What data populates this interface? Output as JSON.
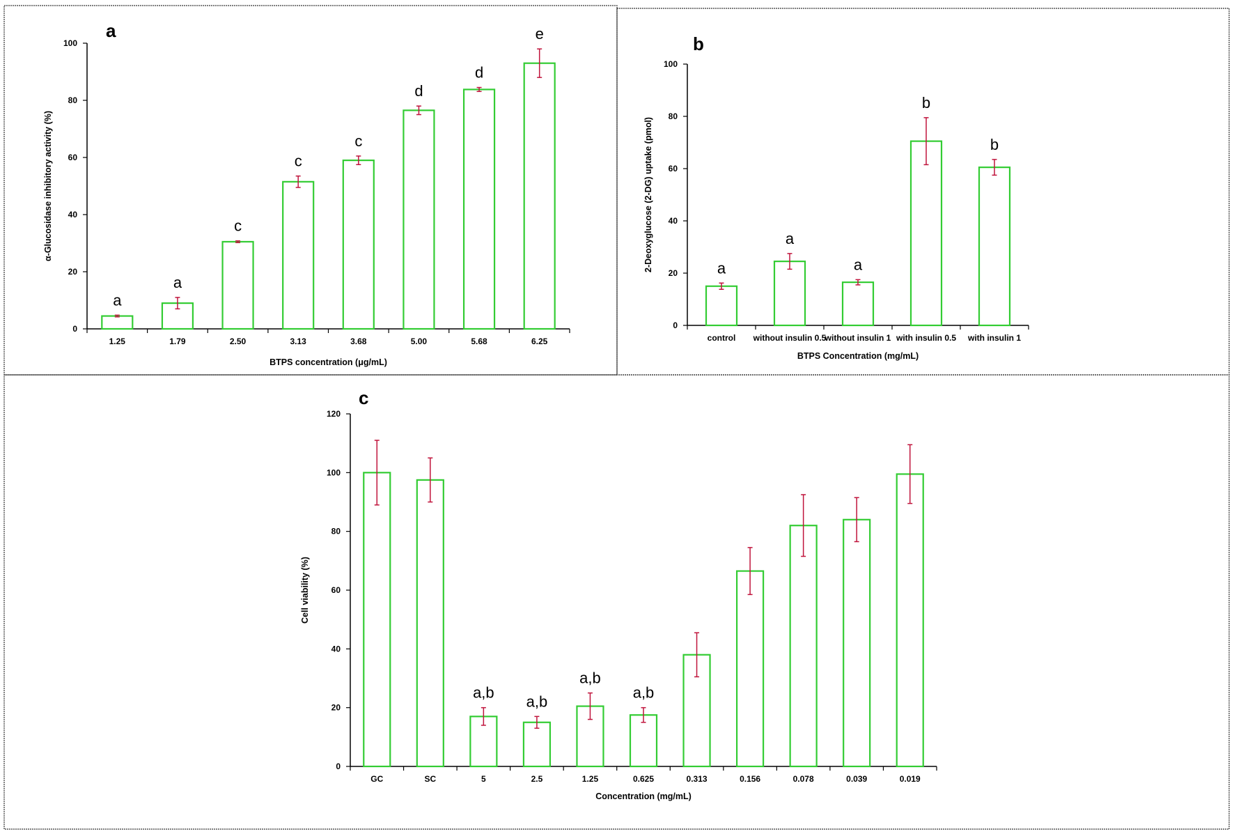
{
  "colors": {
    "bar_outline": "#33cc33",
    "error_bar": "#c0143c",
    "axis": "#000000"
  },
  "chart_data": [
    {
      "type": "bar",
      "panel_label": "a",
      "xlabel": "BTPS concentration (μg/mL)",
      "ylabel": "α-Glucosidase inhibitory activity (%)",
      "ylim": [
        0,
        100
      ],
      "yticks": [
        0,
        20,
        40,
        60,
        80,
        100
      ],
      "grid": false,
      "categories": [
        "1.25",
        "1.79",
        "2.50",
        "3.13",
        "3.68",
        "5.00",
        "5.68",
        "6.25"
      ],
      "values": [
        4.5,
        9,
        30.5,
        51.5,
        59,
        76.5,
        83.8,
        93
      ],
      "errors": [
        0.3,
        2,
        0.3,
        2,
        1.5,
        1.5,
        0.7,
        5
      ],
      "significance": [
        "a",
        "a",
        "c",
        "c",
        "c",
        "d",
        "d",
        "e"
      ]
    },
    {
      "type": "bar",
      "panel_label": "b",
      "xlabel": "BTPS Concentration (mg/mL)",
      "ylabel": "2-Deoxyglucose (2-DG) uptake (pmol)",
      "ylim": [
        0,
        100
      ],
      "yticks": [
        0,
        20,
        40,
        60,
        80,
        100
      ],
      "grid": false,
      "categories": [
        "control",
        "without insulin 0.5",
        "without insulin 1",
        "with insulin 0.5",
        "with insulin 1"
      ],
      "values": [
        15,
        24.5,
        16.5,
        70.5,
        60.5
      ],
      "errors": [
        1.2,
        3,
        1,
        9,
        3
      ],
      "significance": [
        "a",
        "a",
        "a",
        "b",
        "b"
      ]
    },
    {
      "type": "bar",
      "panel_label": "c",
      "xlabel": "Concentration (mg/mL)",
      "ylabel": "Cell viability (%)",
      "ylim": [
        0,
        120
      ],
      "yticks": [
        0,
        20,
        40,
        60,
        80,
        100,
        120
      ],
      "grid": false,
      "categories": [
        "GC",
        "SC",
        "5",
        "2.5",
        "1.25",
        "0.625",
        "0.313",
        "0.156",
        "0.078",
        "0.039",
        "0.019"
      ],
      "values": [
        100,
        97.5,
        17,
        15,
        20.5,
        17.5,
        38,
        66.5,
        82,
        84,
        99.5
      ],
      "errors": [
        11,
        7.5,
        3,
        2,
        4.5,
        2.5,
        7.5,
        8,
        10.5,
        7.5,
        10
      ],
      "significance": [
        "",
        "",
        "a,b",
        "a,b",
        "a,b",
        "a,b",
        "",
        "",
        "",
        "",
        ""
      ]
    }
  ]
}
